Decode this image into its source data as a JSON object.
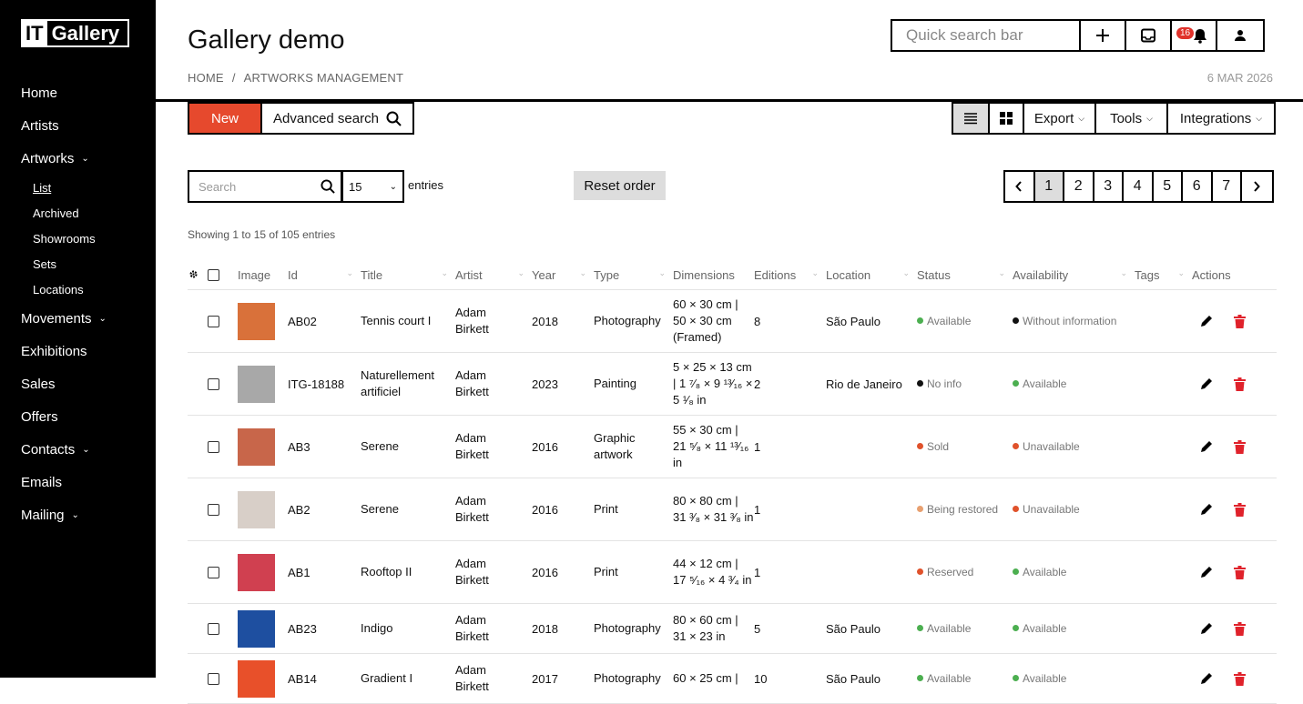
{
  "logo": {
    "it": "IT",
    "gallery": "Gallery"
  },
  "sidebar": {
    "items": [
      {
        "label": "Home"
      },
      {
        "label": "Artists"
      },
      {
        "label": "Artworks",
        "chevron": true
      },
      {
        "label": "Movements",
        "chevron": true
      },
      {
        "label": "Exhibitions"
      },
      {
        "label": "Sales"
      },
      {
        "label": "Offers"
      },
      {
        "label": "Contacts",
        "chevron": true
      },
      {
        "label": "Emails"
      },
      {
        "label": "Mailing",
        "chevron": true
      }
    ],
    "artworks_sub": [
      "List",
      "Archived",
      "Showrooms",
      "Sets",
      "Locations"
    ]
  },
  "header": {
    "title": "Gallery demo",
    "breadcrumb": [
      "HOME",
      "ARTWORKS MANAGEMENT"
    ],
    "breadcrumb_sep": "/",
    "date": "6 MAR 2026",
    "quick_search_placeholder": "Quick search bar",
    "notifications_count": "16"
  },
  "toolbar": {
    "new_label": "New",
    "advanced_search_label": "Advanced search",
    "export_label": "Export",
    "tools_label": "Tools",
    "integrations_label": "Integrations"
  },
  "filters": {
    "search_placeholder": "Search",
    "entries_value": "15",
    "entries_label": "entries",
    "reset_order_label": "Reset order",
    "pages": [
      "1",
      "2",
      "3",
      "4",
      "5",
      "6",
      "7"
    ],
    "current_page": "1",
    "showing": "Showing 1 to 15 of 105 entries"
  },
  "table": {
    "headers": [
      "Image",
      "Id",
      "Title",
      "Artist",
      "Year",
      "Type",
      "Dimensions",
      "Editions",
      "Location",
      "Status",
      "Availability",
      "Tags",
      "Actions"
    ],
    "rows": [
      {
        "id": "AB02",
        "title": "Tennis court I",
        "artist": "Adam Birkett",
        "year": "2018",
        "type": "Photography",
        "dimensions": "60 × 30 cm | 50 × 30 cm (Framed)",
        "editions": "8",
        "location": "São Paulo",
        "status": "Available",
        "status_color": "#4caf50",
        "availability": "Without information",
        "availability_color": "#111111",
        "thumb_color": "#d9713a",
        "height": 69
      },
      {
        "id": "ITG-18188",
        "title": "Naturellement artificiel",
        "artist": "Adam Birkett",
        "year": "2023",
        "type": "Painting",
        "dimensions": "5 × 25 × 13 cm | 1 ⁷⁄₈ × 9 ¹³⁄₁₆ × 5 ¹⁄₈ in",
        "editions": "2",
        "location": "Rio de Janeiro",
        "status": "No info",
        "status_color": "#111111",
        "availability": "Available",
        "availability_color": "#4caf50",
        "thumb_color": "#a8a8a8",
        "height": 69
      },
      {
        "id": "AB3",
        "title": "Serene",
        "artist": "Adam Birkett",
        "year": "2016",
        "type": "Graphic artwork",
        "dimensions": "55 × 30 cm | 21 ⁵⁄₈ × 11 ¹³⁄₁₆ in",
        "editions": "1",
        "location": "",
        "status": "Sold",
        "status_color": "#e0522b",
        "availability": "Unavailable",
        "availability_color": "#e0522b",
        "thumb_color": "#c8664a",
        "height": 69
      },
      {
        "id": "AB2",
        "title": "Serene",
        "artist": "Adam Birkett",
        "year": "2016",
        "type": "Print",
        "dimensions": "80 × 80 cm | 31 ³⁄₈ × 31 ³⁄₈ in",
        "editions": "1",
        "location": "",
        "status": "Being restored",
        "status_color": "#e8a070",
        "availability": "Unavailable",
        "availability_color": "#e0522b",
        "thumb_color": "#d8cfc8",
        "height": 69
      },
      {
        "id": "AB1",
        "title": "Rooftop II",
        "artist": "Adam Birkett",
        "year": "2016",
        "type": "Print",
        "dimensions": "44 × 12 cm | 17 ⁵⁄₁₆ × 4 ³⁄₄ in",
        "editions": "1",
        "location": "",
        "status": "Reserved",
        "status_color": "#e0522b",
        "availability": "Available",
        "availability_color": "#4caf50",
        "thumb_color": "#d04050",
        "height": 69
      },
      {
        "id": "AB23",
        "title": "Indigo",
        "artist": "Adam Birkett",
        "year": "2018",
        "type": "Photography",
        "dimensions": "80 × 60 cm | 31 × 23 in",
        "editions": "5",
        "location": "São Paulo",
        "status": "Available",
        "status_color": "#4caf50",
        "availability": "Available",
        "availability_color": "#4caf50",
        "thumb_color": "#1e4fa0",
        "height": 55
      },
      {
        "id": "AB14",
        "title": "Gradient I",
        "artist": "Adam Birkett",
        "year": "2017",
        "type": "Photography",
        "dimensions": "60 × 25 cm |",
        "editions": "10",
        "location": "São Paulo",
        "status": "Available",
        "status_color": "#4caf50",
        "availability": "Available",
        "availability_color": "#4caf50",
        "thumb_color": "#e8502a",
        "height": 55
      }
    ]
  }
}
